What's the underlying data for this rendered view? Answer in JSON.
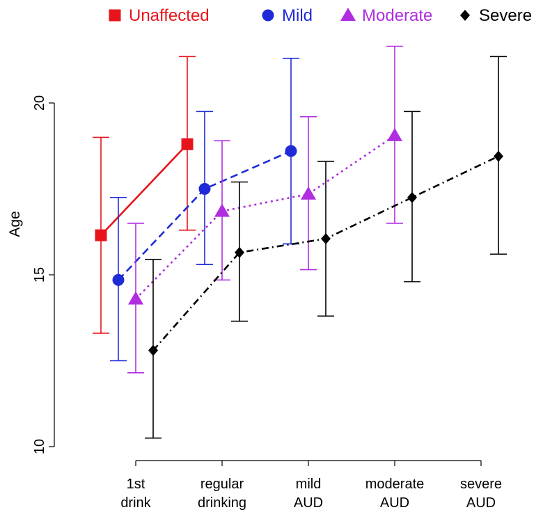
{
  "chart_data": {
    "type": "line",
    "ylabel": "Age",
    "ylim": [
      10,
      21.5
    ],
    "yticks": [
      10,
      15,
      20
    ],
    "categories": [
      {
        "lines": [
          "1st",
          "drink"
        ]
      },
      {
        "lines": [
          "regular",
          "drinking"
        ]
      },
      {
        "lines": [
          "mild",
          "AUD"
        ]
      },
      {
        "lines": [
          "moderate",
          "AUD"
        ]
      },
      {
        "lines": [
          "severe",
          "AUD"
        ]
      }
    ],
    "legend_position": "top",
    "series": [
      {
        "name": "Unaffected",
        "color": "#e8141b",
        "marker": "square",
        "line_style": "solid",
        "points": [
          {
            "category": 0,
            "y": 16.15,
            "low": 13.3,
            "high": 19.0
          },
          {
            "category": 1,
            "y": 18.8,
            "low": 16.3,
            "high": 21.35
          }
        ]
      },
      {
        "name": "Mild",
        "color": "#1f2bd6",
        "marker": "circle",
        "line_style": "dashed",
        "points": [
          {
            "category": 0,
            "y": 14.85,
            "low": 12.5,
            "high": 17.25
          },
          {
            "category": 1,
            "y": 17.5,
            "low": 15.3,
            "high": 19.75
          },
          {
            "category": 2,
            "y": 18.6,
            "low": 15.9,
            "high": 21.3
          }
        ]
      },
      {
        "name": "Moderate",
        "color": "#b02ee0",
        "marker": "triangle",
        "line_style": "dotted",
        "points": [
          {
            "category": 0,
            "y": 14.3,
            "low": 12.15,
            "high": 16.5
          },
          {
            "category": 1,
            "y": 16.85,
            "low": 14.85,
            "high": 18.9
          },
          {
            "category": 2,
            "y": 17.35,
            "low": 15.15,
            "high": 19.6
          },
          {
            "category": 3,
            "y": 19.05,
            "low": 16.5,
            "high": 21.65
          }
        ]
      },
      {
        "name": "Severe",
        "color": "#000000",
        "marker": "diamond",
        "line_style": "dashdot",
        "points": [
          {
            "category": 0,
            "y": 12.8,
            "low": 10.25,
            "high": 15.45
          },
          {
            "category": 1,
            "y": 15.65,
            "low": 13.65,
            "high": 17.7
          },
          {
            "category": 2,
            "y": 16.05,
            "low": 13.8,
            "high": 18.3
          },
          {
            "category": 3,
            "y": 17.25,
            "low": 14.8,
            "high": 19.75
          },
          {
            "category": 4,
            "y": 18.45,
            "low": 15.6,
            "high": 21.35
          }
        ]
      }
    ]
  }
}
